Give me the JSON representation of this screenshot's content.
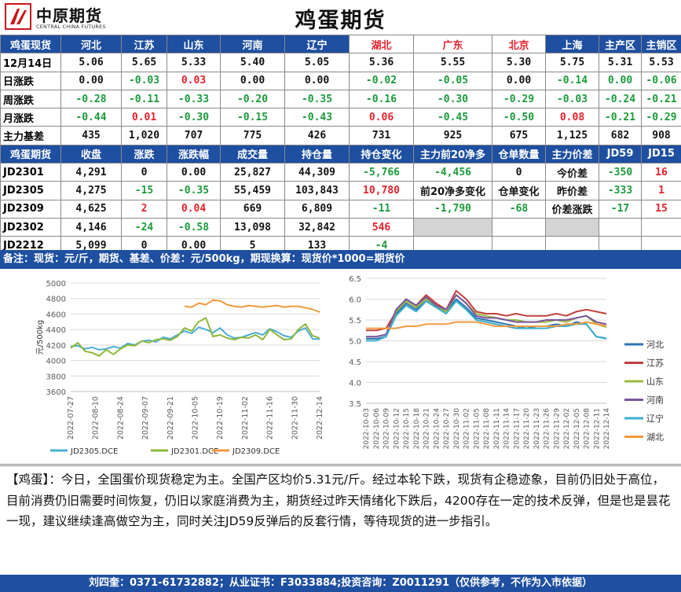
{
  "header": {
    "logo_cn": "中原期货",
    "logo_en": "CENTRAL CHINA FUTURES",
    "title": "鸡蛋期货"
  },
  "spot_header": [
    "鸡蛋现货",
    "河北",
    "江苏",
    "山东",
    "河南",
    "辽宁",
    "湖北",
    "广东",
    "北京",
    "上海",
    "主产区",
    "主销区"
  ],
  "spot_rows": [
    {
      "label": "12月14日",
      "cells": [
        "5.06",
        "5.65",
        "5.33",
        "5.40",
        "5.05",
        "5.36",
        "5.55",
        "5.30",
        "5.75",
        "5.31",
        "5.53"
      ],
      "colors": [
        "k",
        "k",
        "k",
        "k",
        "k",
        "k",
        "k",
        "k",
        "k",
        "k",
        "k"
      ]
    },
    {
      "label": "日涨跌",
      "cells": [
        "0.00",
        "-0.03",
        "0.03",
        "0.00",
        "0.00",
        "-0.02",
        "-0.05",
        "0.00",
        "-0.14",
        "0.00",
        "-0.06"
      ],
      "colors": [
        "k",
        "g",
        "r",
        "k",
        "k",
        "g",
        "g",
        "k",
        "g",
        "g",
        "g"
      ]
    },
    {
      "label": "周涨跌",
      "cells": [
        "-0.28",
        "-0.11",
        "-0.33",
        "-0.20",
        "-0.35",
        "-0.16",
        "-0.30",
        "-0.29",
        "-0.03",
        "-0.24",
        "-0.21"
      ],
      "colors": [
        "g",
        "g",
        "g",
        "g",
        "g",
        "g",
        "g",
        "g",
        "g",
        "g",
        "g"
      ]
    },
    {
      "label": "月涨跌",
      "cells": [
        "-0.44",
        "0.01",
        "-0.30",
        "-0.15",
        "-0.43",
        "0.06",
        "-0.45",
        "-0.50",
        "0.08",
        "-0.21",
        "-0.29"
      ],
      "colors": [
        "g",
        "r",
        "g",
        "g",
        "g",
        "r",
        "g",
        "g",
        "r",
        "g",
        "g"
      ]
    },
    {
      "label": "主力基差",
      "cells": [
        "435",
        "1,020",
        "707",
        "775",
        "426",
        "731",
        "925",
        "675",
        "1,125",
        "682",
        "908"
      ],
      "colors": [
        "k",
        "k",
        "k",
        "k",
        "k",
        "k",
        "k",
        "k",
        "k",
        "k",
        "k"
      ]
    }
  ],
  "futures_header": [
    "鸡蛋期货",
    "收盘",
    "涨跌",
    "涨跌幅",
    "成交量",
    "持仓量",
    "持仓变化",
    "主力前20净多",
    "仓单数量",
    "主力价差",
    "JD59",
    "JD15"
  ],
  "futures_rows": [
    {
      "label": "JD2301",
      "close": "4,291",
      "chg": "0",
      "pct": "0.00",
      "vol": "25,827",
      "oi": "44,309",
      "oichg": "-5,766",
      "c7": "-4,456",
      "c8": "0",
      "c9": "今价差",
      "c10": "-350",
      "c11": "16"
    },
    {
      "label": "JD2305",
      "close": "4,275",
      "chg": "-15",
      "pct": "-0.35",
      "vol": "55,459",
      "oi": "103,843",
      "oichg": "10,780",
      "c7": "前20净多变化",
      "c8": "仓单变化",
      "c9": "昨价差",
      "c10": "-333",
      "c11": "1"
    },
    {
      "label": "JD2309",
      "close": "4,625",
      "chg": "2",
      "pct": "0.04",
      "vol": "669",
      "oi": "6,809",
      "oichg": "-11",
      "c7": "-1,790",
      "c8": "-68",
      "c9": "价差涨跌",
      "c10": "-17",
      "c11": "15"
    },
    {
      "label": "JD2302",
      "close": "4,146",
      "chg": "-24",
      "pct": "-0.58",
      "vol": "13,098",
      "oi": "32,842",
      "oichg": "546"
    },
    {
      "label": "JD2212",
      "close": "5,099",
      "chg": "0",
      "pct": "0.00",
      "vol": "5",
      "oi": "133",
      "oichg": "-4"
    }
  ],
  "note": "备注：现货：元/斤，期货、基差、价差：元/500kg，期现换算：现货价*1000=期货价",
  "colors": {
    "JD2305": "#4aaed6",
    "JD2301": "#8fb83a",
    "JD2309": "#f39a3c",
    "hebei": "#2e74b5",
    "jiangsu": "#c0403c",
    "shandong": "#9bbb3b",
    "henan": "#7a55a0",
    "liaoning": "#3ab0cc",
    "hubei": "#f59a3a"
  },
  "chart_data": [
    {
      "type": "line",
      "ylabel": "元/500kg",
      "ylim": [
        3600,
        5000
      ],
      "yticks": [
        3600,
        3800,
        4000,
        4200,
        4400,
        4600,
        4800,
        5000
      ],
      "xtick_labels": [
        "2022-07-27",
        "2022-08-10",
        "2022-08-24",
        "2022-09-07",
        "2022-09-21",
        "2022-10-05",
        "2022-10-19",
        "2022-11-02",
        "2022-11-16",
        "2022-11-30",
        "2022-12-14"
      ],
      "series": [
        {
          "name": "JD2305.DCE",
          "key": "JD2305",
          "start": 0,
          "values": [
            4180,
            4190,
            4150,
            4170,
            4140,
            4150,
            4180,
            4160,
            4220,
            4200,
            4250,
            4260,
            4240,
            4300,
            4280,
            4330,
            4380,
            4350,
            4430,
            4400,
            4360,
            4420,
            4330,
            4290,
            4300,
            4330,
            4360,
            4330,
            4410,
            4370,
            4320,
            4300,
            4380,
            4420,
            4280,
            4275
          ]
        },
        {
          "name": "JD2301.DCE",
          "key": "JD2301",
          "start": 0,
          "values": [
            4160,
            4230,
            4120,
            4100,
            4060,
            4140,
            4080,
            4150,
            4200,
            4190,
            4250,
            4230,
            4270,
            4280,
            4260,
            4310,
            4420,
            4380,
            4500,
            4550,
            4310,
            4330,
            4290,
            4270,
            4300,
            4290,
            4330,
            4270,
            4400,
            4330,
            4270,
            4280,
            4400,
            4470,
            4320,
            4291
          ]
        },
        {
          "name": "JD2309.DCE",
          "key": "JD2309",
          "start": 16,
          "values": [
            4700,
            4690,
            4740,
            4720,
            4780,
            4770,
            4720,
            4700,
            4690,
            4710,
            4700,
            4690,
            4700,
            4710,
            4690,
            4700,
            4700,
            4680,
            4660,
            4625
          ]
        }
      ]
    },
    {
      "type": "line",
      "ylim": [
        3.5,
        6.5
      ],
      "yticks": [
        3.5,
        4.0,
        4.5,
        5.0,
        5.5,
        6.0,
        6.5
      ],
      "xtick_labels": [
        "2022-10-03",
        "2022-10-06",
        "2022-10-09",
        "2022-10-12",
        "2022-10-15",
        "2022-10-18",
        "2022-10-21",
        "2022-10-24",
        "2022-10-27",
        "2022-10-30",
        "2022-11-02",
        "2022-11-05",
        "2022-11-08",
        "2022-11-11",
        "2022-11-14",
        "2022-11-17",
        "2022-11-20",
        "2022-11-23",
        "2022-11-26",
        "2022-11-29",
        "2022-12-02",
        "2022-12-05",
        "2022-12-08",
        "2022-12-11",
        "2022-12-14"
      ],
      "series": [
        {
          "name": "河北",
          "key": "hebei",
          "values": [
            5.05,
            5.05,
            5.1,
            5.65,
            5.9,
            5.75,
            6.0,
            5.8,
            5.7,
            6.0,
            5.8,
            5.55,
            5.5,
            5.45,
            5.4,
            5.35,
            5.3,
            5.35,
            5.35,
            5.4,
            5.35,
            5.45,
            5.4,
            5.1,
            5.06
          ]
        },
        {
          "name": "江苏",
          "key": "jiangsu",
          "values": [
            5.25,
            5.25,
            5.3,
            5.7,
            6.0,
            5.85,
            6.1,
            5.9,
            5.75,
            6.2,
            6.0,
            5.7,
            5.65,
            5.65,
            5.6,
            5.65,
            5.6,
            5.6,
            5.6,
            5.65,
            5.6,
            5.7,
            5.75,
            5.7,
            5.65
          ]
        },
        {
          "name": "山东",
          "key": "shandong",
          "values": [
            5.1,
            5.1,
            5.15,
            5.7,
            5.95,
            5.8,
            6.0,
            5.85,
            5.7,
            6.1,
            5.9,
            5.65,
            5.6,
            5.55,
            5.5,
            5.5,
            5.45,
            5.45,
            5.45,
            5.5,
            5.45,
            5.55,
            5.6,
            5.4,
            5.33
          ]
        },
        {
          "name": "河南",
          "key": "henan",
          "values": [
            5.1,
            5.1,
            5.15,
            5.75,
            6.0,
            5.85,
            6.05,
            5.85,
            5.75,
            6.1,
            5.9,
            5.6,
            5.55,
            5.55,
            5.5,
            5.45,
            5.45,
            5.45,
            5.5,
            5.5,
            5.5,
            5.55,
            5.6,
            5.45,
            5.4
          ]
        },
        {
          "name": "辽宁",
          "key": "liaoning",
          "values": [
            5.0,
            5.0,
            5.1,
            5.6,
            5.85,
            5.7,
            5.95,
            5.8,
            5.65,
            5.95,
            5.75,
            5.5,
            5.45,
            5.4,
            5.35,
            5.3,
            5.3,
            5.3,
            5.3,
            5.35,
            5.35,
            5.4,
            5.4,
            5.1,
            5.05
          ]
        },
        {
          "name": "湖北",
          "key": "hubei",
          "values": [
            5.3,
            5.3,
            5.3,
            5.3,
            5.35,
            5.35,
            5.4,
            5.4,
            5.4,
            5.45,
            5.45,
            5.45,
            5.4,
            5.35,
            5.35,
            5.35,
            5.35,
            5.35,
            5.35,
            5.35,
            5.4,
            5.4,
            5.45,
            5.4,
            5.36
          ]
        }
      ]
    }
  ],
  "comment": "【鸡蛋】：今日，全国蛋价现货稳定为主。全国产区均价5.31元/斤。经过本轮下跌，现货有企稳迹象，目前仍旧处于高位，目前消费仍旧需要时间恢复，仍旧以家庭消费为主，期货经过昨天情绪化下跌后，4200存在一定的技术反弹，但是也是昙花一现，建议继续逢高做空为主，同时关注JD59反弹后的反套行情，等待现货的进一步指引。",
  "footer": "刘四奎：0371-61732882；从业证书：F3033884;投资咨询：Z0011291（仅供参考，不作为入市依据）"
}
